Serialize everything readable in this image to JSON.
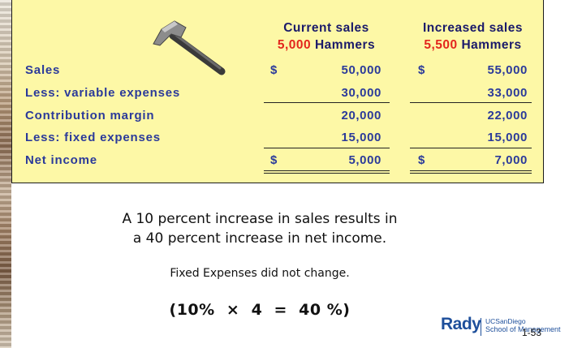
{
  "headers": {
    "current": {
      "title": "Current sales",
      "qty": "5,000",
      "unit": "Hammers"
    },
    "increased": {
      "title": "Increased sales",
      "qty": "5,500",
      "unit": "Hammers"
    }
  },
  "rows": [
    {
      "label": "Sales",
      "current": "50,000",
      "increased": "55,000",
      "dollar": "$"
    },
    {
      "label": "Less: variable expenses",
      "current": "30,000",
      "increased": "33,000"
    },
    {
      "label": "Contribution margin",
      "current": "20,000",
      "increased": "22,000"
    },
    {
      "label": "Less: fixed expenses",
      "current": "15,000",
      "increased": "15,000"
    },
    {
      "label": "Net income",
      "current": "5,000",
      "increased": "7,000",
      "dollar": "$"
    }
  ],
  "note": {
    "line1": "A 10 percent increase in sales results in",
    "line2": "a 40 percent increase in net income.",
    "fixed": "Fixed Expenses did not change.",
    "formula": "(10%  ×  4  =  40 %)"
  },
  "logo": {
    "name": "Rady",
    "university": "UCSanDiego",
    "school": "School of Management"
  },
  "slide_number": "1-53",
  "colors": {
    "panel": "#fdf8a6",
    "label": "#2b3a9a",
    "qty_red": "#e3261d"
  }
}
